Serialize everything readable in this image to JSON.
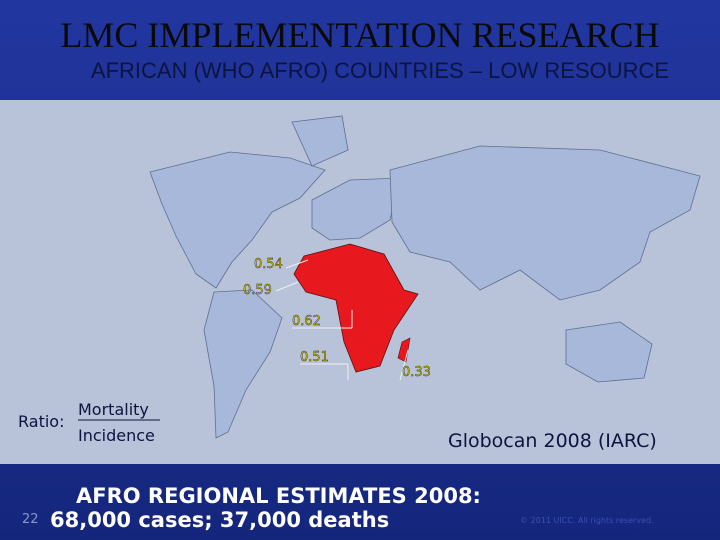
{
  "header": {
    "title": "LMC IMPLEMENTATION RESEARCH",
    "subtitle": "AFRICAN (WHO AFRO) COUNTRIES – LOW RESOURCE"
  },
  "map": {
    "labels": [
      "0.54",
      "0.59",
      "0.62",
      "0.51",
      "0.33"
    ],
    "ratio": {
      "label": "Ratio:",
      "numerator": "Mortality",
      "denominator": "Incidence"
    },
    "source": "Globocan 2008 (IARC)"
  },
  "footer": {
    "slide_number": "22",
    "line1": "AFRO REGIONAL ESTIMATES 2008:",
    "line2": "68,000 cases; 37,000 deaths",
    "copyright": "© 2011 UICC. All rights reserved."
  }
}
